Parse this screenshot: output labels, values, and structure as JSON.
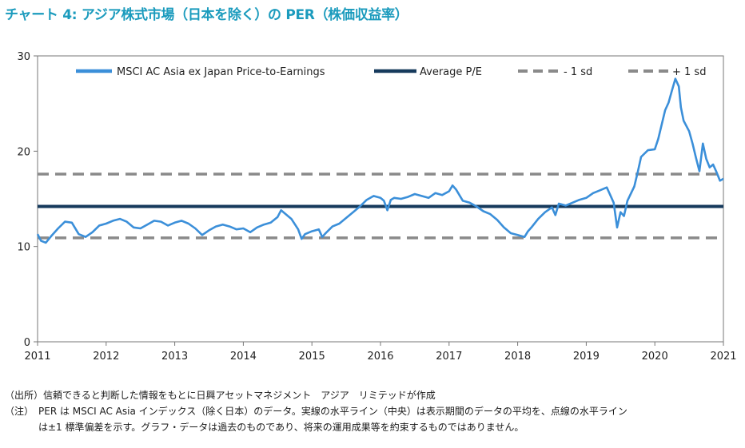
{
  "title": "チャート 4: アジア株式市場（日本を除く）の PER（株価収益率）",
  "notes": {
    "source": "（出所）信頼できると判断した情報をもとに日興アセットマネジメント　アジア　リミテッドが作成",
    "note_label": "（注）",
    "note_line1": "PER は MSCI AC Asia インデックス（除く日本）のデータ。実線の水平ライン（中央）は表示期間のデータの平均を、点線の水平ライン",
    "note_line2": "は±1 標準偏差を示す。グラフ・データは過去のものであり、将来の運用成果等を約束するものではありません。"
  },
  "colors": {
    "title": "#1b9bbd",
    "series": "#3b8fd9",
    "average": "#163a5c",
    "sd": "#8a8a8a"
  },
  "chart_data": {
    "type": "line",
    "x_ticks": [
      "2011",
      "2012",
      "2013",
      "2014",
      "2015",
      "2016",
      "2017",
      "2018",
      "2019",
      "2020",
      "2021"
    ],
    "xlim": [
      2011,
      2021
    ],
    "ylim": [
      0,
      30
    ],
    "y_ticks": [
      "0",
      "10",
      "20",
      "30"
    ],
    "grid": false,
    "legend_position": "top",
    "series": [
      {
        "name": "MSCI AC Asia ex Japan Price-to-Earnings",
        "points": [
          [
            2011.0,
            11.3
          ],
          [
            2011.05,
            10.6
          ],
          [
            2011.12,
            10.4
          ],
          [
            2011.2,
            11.1
          ],
          [
            2011.3,
            11.9
          ],
          [
            2011.4,
            12.6
          ],
          [
            2011.5,
            12.5
          ],
          [
            2011.6,
            11.3
          ],
          [
            2011.7,
            11.0
          ],
          [
            2011.8,
            11.5
          ],
          [
            2011.9,
            12.2
          ],
          [
            2012.0,
            12.4
          ],
          [
            2012.1,
            12.7
          ],
          [
            2012.2,
            12.9
          ],
          [
            2012.3,
            12.6
          ],
          [
            2012.4,
            12.0
          ],
          [
            2012.5,
            11.9
          ],
          [
            2012.6,
            12.3
          ],
          [
            2012.7,
            12.7
          ],
          [
            2012.8,
            12.6
          ],
          [
            2012.9,
            12.2
          ],
          [
            2013.0,
            12.5
          ],
          [
            2013.1,
            12.7
          ],
          [
            2013.2,
            12.4
          ],
          [
            2013.3,
            11.9
          ],
          [
            2013.4,
            11.2
          ],
          [
            2013.5,
            11.7
          ],
          [
            2013.6,
            12.1
          ],
          [
            2013.7,
            12.3
          ],
          [
            2013.8,
            12.1
          ],
          [
            2013.9,
            11.8
          ],
          [
            2014.0,
            11.9
          ],
          [
            2014.1,
            11.5
          ],
          [
            2014.2,
            12.0
          ],
          [
            2014.3,
            12.3
          ],
          [
            2014.4,
            12.5
          ],
          [
            2014.5,
            13.1
          ],
          [
            2014.55,
            13.8
          ],
          [
            2014.6,
            13.5
          ],
          [
            2014.7,
            12.9
          ],
          [
            2014.8,
            11.8
          ],
          [
            2014.85,
            10.8
          ],
          [
            2014.9,
            11.3
          ],
          [
            2015.0,
            11.6
          ],
          [
            2015.1,
            11.8
          ],
          [
            2015.15,
            11.0
          ],
          [
            2015.2,
            11.4
          ],
          [
            2015.3,
            12.1
          ],
          [
            2015.4,
            12.4
          ],
          [
            2015.5,
            13.0
          ],
          [
            2015.6,
            13.6
          ],
          [
            2015.7,
            14.2
          ],
          [
            2015.8,
            14.9
          ],
          [
            2015.9,
            15.3
          ],
          [
            2016.0,
            15.1
          ],
          [
            2016.05,
            14.8
          ],
          [
            2016.1,
            13.8
          ],
          [
            2016.15,
            14.9
          ],
          [
            2016.2,
            15.1
          ],
          [
            2016.3,
            15.0
          ],
          [
            2016.4,
            15.2
          ],
          [
            2016.5,
            15.5
          ],
          [
            2016.6,
            15.3
          ],
          [
            2016.7,
            15.1
          ],
          [
            2016.8,
            15.6
          ],
          [
            2016.9,
            15.4
          ],
          [
            2017.0,
            15.8
          ],
          [
            2017.05,
            16.4
          ],
          [
            2017.1,
            16.0
          ],
          [
            2017.2,
            14.8
          ],
          [
            2017.3,
            14.6
          ],
          [
            2017.4,
            14.2
          ],
          [
            2017.5,
            13.7
          ],
          [
            2017.6,
            13.4
          ],
          [
            2017.7,
            12.8
          ],
          [
            2017.8,
            12.0
          ],
          [
            2017.9,
            11.4
          ],
          [
            2018.0,
            11.2
          ],
          [
            2018.1,
            11.0
          ],
          [
            2018.15,
            11.6
          ],
          [
            2018.2,
            12.0
          ],
          [
            2018.3,
            12.9
          ],
          [
            2018.4,
            13.6
          ],
          [
            2018.5,
            14.1
          ],
          [
            2018.55,
            13.3
          ],
          [
            2018.6,
            14.5
          ],
          [
            2018.7,
            14.3
          ],
          [
            2018.8,
            14.6
          ],
          [
            2018.9,
            14.9
          ],
          [
            2019.0,
            15.1
          ],
          [
            2019.1,
            15.6
          ],
          [
            2019.2,
            15.9
          ],
          [
            2019.3,
            16.2
          ],
          [
            2019.35,
            15.4
          ],
          [
            2019.4,
            14.6
          ],
          [
            2019.45,
            12.0
          ],
          [
            2019.5,
            13.6
          ],
          [
            2019.55,
            13.2
          ],
          [
            2019.6,
            14.8
          ],
          [
            2019.7,
            16.3
          ],
          [
            2019.75,
            17.8
          ],
          [
            2019.8,
            19.4
          ],
          [
            2019.9,
            20.1
          ],
          [
            2020.0,
            20.2
          ],
          [
            2020.05,
            21.3
          ],
          [
            2020.1,
            22.8
          ],
          [
            2020.15,
            24.3
          ],
          [
            2020.2,
            25.1
          ],
          [
            2020.25,
            26.4
          ],
          [
            2020.3,
            27.6
          ],
          [
            2020.35,
            26.8
          ],
          [
            2020.38,
            24.6
          ],
          [
            2020.42,
            23.2
          ],
          [
            2020.5,
            22.1
          ],
          [
            2020.55,
            20.8
          ],
          [
            2020.6,
            19.3
          ],
          [
            2020.65,
            17.9
          ],
          [
            2020.7,
            20.8
          ],
          [
            2020.75,
            19.2
          ],
          [
            2020.8,
            18.3
          ],
          [
            2020.85,
            18.6
          ],
          [
            2020.9,
            17.8
          ],
          [
            2020.95,
            16.9
          ],
          [
            2021.0,
            17.1
          ]
        ]
      },
      {
        "name": "Average P/E",
        "value": 14.2
      },
      {
        "name": "- 1 sd",
        "value": 10.9
      },
      {
        "name": "+ 1 sd",
        "value": 17.6
      }
    ]
  }
}
